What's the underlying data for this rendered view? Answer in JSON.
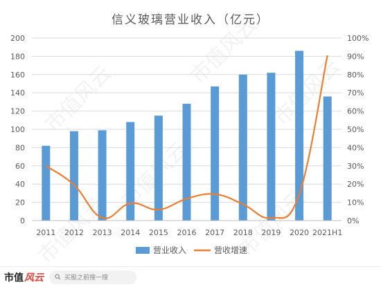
{
  "chart_data": {
    "type": "bar+line",
    "title": "信义玻璃营业收入（亿元）",
    "categories": [
      "2011",
      "2012",
      "2013",
      "2014",
      "2015",
      "2016",
      "2017",
      "2018",
      "2019",
      "2020",
      "2021H1"
    ],
    "series": [
      {
        "name": "营业收入",
        "type": "bar",
        "axis": "left",
        "color": "#5b9bd5",
        "values": [
          82,
          98,
          99,
          108,
          115,
          128,
          147,
          160,
          162,
          186,
          136
        ]
      },
      {
        "name": "营收增速",
        "type": "line",
        "axis": "right",
        "color": "#ed7d31",
        "values": [
          0.3,
          0.195,
          0.015,
          0.095,
          0.06,
          0.12,
          0.145,
          0.09,
          0.015,
          0.145,
          0.905
        ]
      }
    ],
    "y_left": {
      "range": [
        0,
        200
      ],
      "ticks": [
        "0",
        "20",
        "40",
        "60",
        "80",
        "100",
        "120",
        "140",
        "160",
        "180",
        "200"
      ]
    },
    "y_right": {
      "range": [
        0,
        1.0
      ],
      "ticks": [
        "0%",
        "10%",
        "20%",
        "30%",
        "40%",
        "50%",
        "60%",
        "70%",
        "80%",
        "90%",
        "100%"
      ]
    },
    "grid": true,
    "legend_position": "bottom"
  },
  "watermark": "市值风云",
  "footer": {
    "brand_main": "市值",
    "brand_accent": "风云",
    "search_placeholder": "买股之前搜一搜"
  }
}
